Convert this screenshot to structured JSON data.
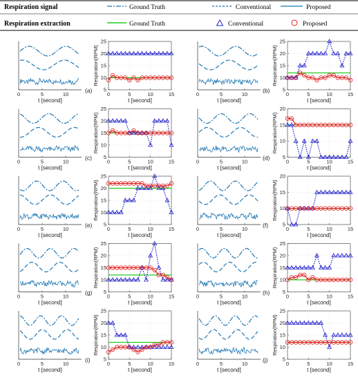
{
  "legend": {
    "signal_title": "Respiration signal",
    "signal_items": [
      "Ground Truth",
      "Conventional",
      "Proposed"
    ],
    "extraction_title": "Respiration extraction",
    "extraction_items": [
      "Ground Truth",
      "Conventional",
      "Proposed"
    ]
  },
  "colors": {
    "signal": "#1f77b4",
    "ground_truth_line": "#22cc22",
    "conventional_marker": "#2222cc",
    "proposed_marker": "#e02020",
    "axis": "#333333"
  },
  "axes": {
    "signal_xlabel": "t [second]",
    "signal_xticks": [
      "0",
      "5",
      "10"
    ],
    "rate_xlabel": "t [second]",
    "rate_ylabel": "Respiration(RPM)",
    "rate_xticks": [
      "0",
      "5",
      "10",
      "15"
    ],
    "rate_yticks": [
      "5",
      "10",
      "15",
      "20",
      "25"
    ]
  },
  "chart_data": [
    {
      "label": "(a)",
      "type": "line",
      "xlim": [
        0,
        15
      ],
      "ylim": [
        5,
        25
      ],
      "x": [
        0,
        1,
        2,
        3,
        4,
        5,
        6,
        7,
        8,
        9,
        10,
        11,
        12,
        13,
        14,
        15
      ],
      "series": [
        {
          "name": "Ground Truth",
          "values": [
            10,
            10,
            10,
            10,
            10,
            10,
            10,
            10,
            10,
            10,
            10,
            10,
            10,
            10,
            10,
            10
          ]
        },
        {
          "name": "Conventional",
          "values": [
            20,
            20,
            20,
            20,
            20,
            20,
            20,
            20,
            20,
            20,
            20,
            20,
            20,
            20,
            20,
            20
          ]
        },
        {
          "name": "Proposed",
          "values": [
            9,
            11,
            10,
            10,
            10,
            9,
            10,
            9,
            10,
            10,
            10,
            10,
            10,
            10,
            10,
            10
          ]
        }
      ]
    },
    {
      "label": "(b)",
      "type": "line",
      "xlim": [
        0,
        15
      ],
      "ylim": [
        5,
        25
      ],
      "x": [
        0,
        1,
        2,
        3,
        4,
        5,
        6,
        7,
        8,
        9,
        10,
        11,
        12,
        13,
        14,
        15
      ],
      "series": [
        {
          "name": "Ground Truth",
          "values": [
            12,
            12,
            12,
            12,
            12,
            12,
            12,
            12,
            12,
            12,
            12,
            12,
            12,
            12,
            12,
            12
          ]
        },
        {
          "name": "Conventional",
          "values": [
            10,
            10,
            10,
            15,
            15,
            20,
            20,
            20,
            20,
            20,
            25,
            20,
            20,
            15,
            20,
            20
          ]
        },
        {
          "name": "Proposed",
          "values": [
            10,
            10,
            10,
            12,
            11,
            10,
            10,
            9,
            10,
            10,
            11,
            11,
            10,
            10,
            10,
            9
          ]
        }
      ]
    },
    {
      "label": "(c)",
      "type": "line",
      "xlim": [
        0,
        15
      ],
      "ylim": [
        5,
        25
      ],
      "x": [
        0,
        1,
        2,
        3,
        4,
        5,
        6,
        7,
        8,
        9,
        10,
        11,
        12,
        13,
        14,
        15
      ],
      "series": [
        {
          "name": "Ground Truth",
          "values": [
            15,
            15,
            15,
            15,
            15,
            15,
            15,
            15,
            15,
            15,
            15,
            15,
            15,
            15,
            15,
            15
          ]
        },
        {
          "name": "Conventional",
          "values": [
            20,
            20,
            20,
            20,
            20,
            15,
            15,
            15,
            15,
            15,
            10,
            20,
            20,
            20,
            20,
            10
          ]
        },
        {
          "name": "Proposed",
          "values": [
            15,
            16,
            15,
            15,
            15,
            15,
            16,
            15,
            15,
            15,
            15,
            15,
            15,
            15,
            15,
            15
          ]
        }
      ]
    },
    {
      "label": "(d)",
      "type": "line",
      "xlim": [
        0,
        15
      ],
      "ylim": [
        5,
        20
      ],
      "x": [
        0,
        1,
        2,
        3,
        4,
        5,
        6,
        7,
        8,
        9,
        10,
        11,
        12,
        13,
        14,
        15
      ],
      "series": [
        {
          "name": "Ground Truth",
          "values": [
            15,
            15,
            15,
            15,
            15,
            15,
            15,
            15,
            15,
            15,
            15,
            15,
            15,
            15,
            15,
            15
          ]
        },
        {
          "name": "Conventional",
          "values": [
            15,
            15,
            10,
            5,
            10,
            5,
            10,
            10,
            5,
            5,
            5,
            5,
            5,
            5,
            5,
            10
          ]
        },
        {
          "name": "Proposed",
          "values": [
            17,
            17,
            15,
            15,
            15,
            15,
            15,
            15,
            15,
            15,
            15,
            15,
            15,
            15,
            15,
            15
          ]
        }
      ]
    },
    {
      "label": "(e)",
      "type": "line",
      "xlim": [
        0,
        15
      ],
      "ylim": [
        5,
        25
      ],
      "x": [
        0,
        1,
        2,
        3,
        4,
        5,
        6,
        7,
        8,
        9,
        10,
        11,
        12,
        13,
        14,
        15
      ],
      "series": [
        {
          "name": "Ground Truth",
          "values": [
            20,
            20,
            20,
            20,
            20,
            20,
            20,
            20,
            20,
            20,
            20,
            20,
            20,
            20,
            20,
            20
          ]
        },
        {
          "name": "Conventional",
          "values": [
            10,
            10,
            10,
            10,
            15,
            15,
            15,
            20,
            20,
            20,
            20,
            25,
            20,
            20,
            15,
            10
          ]
        },
        {
          "name": "Proposed",
          "values": [
            22,
            22,
            22,
            22,
            22,
            22,
            22,
            22,
            22,
            21,
            21,
            21,
            21,
            21,
            21,
            22
          ]
        }
      ]
    },
    {
      "label": "(f)",
      "type": "line",
      "xlim": [
        0,
        15
      ],
      "ylim": [
        5,
        20
      ],
      "x": [
        0,
        1,
        2,
        3,
        4,
        5,
        6,
        7,
        8,
        9,
        10,
        11,
        12,
        13,
        14,
        15
      ],
      "series": [
        {
          "name": "Ground Truth",
          "values": [
            10,
            10,
            10,
            10,
            10,
            10,
            10,
            10,
            10,
            10,
            10,
            10,
            10,
            10,
            10,
            10
          ]
        },
        {
          "name": "Conventional",
          "values": [
            10,
            5,
            5,
            10,
            10,
            10,
            10,
            15,
            15,
            15,
            15,
            15,
            15,
            15,
            15,
            15
          ]
        },
        {
          "name": "Proposed",
          "values": [
            10,
            10,
            10,
            10,
            10,
            10,
            10,
            10,
            10,
            10,
            10,
            10,
            10,
            10,
            10,
            10
          ]
        }
      ]
    },
    {
      "label": "(g)",
      "type": "line",
      "xlim": [
        0,
        15
      ],
      "ylim": [
        5,
        25
      ],
      "x": [
        0,
        1,
        2,
        3,
        4,
        5,
        6,
        7,
        8,
        9,
        10,
        11,
        12,
        13,
        14,
        15
      ],
      "series": [
        {
          "name": "Ground Truth",
          "values": [
            12,
            12,
            12,
            12,
            12,
            12,
            12,
            12,
            12,
            12,
            12,
            12,
            12,
            12,
            12,
            12
          ]
        },
        {
          "name": "Conventional",
          "values": [
            10,
            10,
            10,
            10,
            10,
            10,
            10,
            10,
            15,
            10,
            20,
            25,
            15,
            10,
            10,
            10
          ]
        },
        {
          "name": "Proposed",
          "values": [
            15,
            15,
            15,
            15,
            15,
            15,
            15,
            15,
            15,
            15,
            15,
            14,
            12,
            12,
            11,
            10
          ]
        }
      ]
    },
    {
      "label": "(h)",
      "type": "line",
      "xlim": [
        0,
        15
      ],
      "ylim": [
        5,
        25
      ],
      "x": [
        0,
        1,
        2,
        3,
        4,
        5,
        6,
        7,
        8,
        9,
        10,
        11,
        12,
        13,
        14,
        15
      ],
      "series": [
        {
          "name": "Ground Truth",
          "values": [
            10,
            10,
            10,
            10,
            10,
            10,
            10,
            10,
            10,
            10,
            10,
            10,
            10,
            10,
            10,
            10
          ]
        },
        {
          "name": "Conventional",
          "values": [
            15,
            15,
            15,
            15,
            15,
            15,
            15,
            20,
            15,
            15,
            15,
            20,
            20,
            20,
            20,
            20
          ]
        },
        {
          "name": "Proposed",
          "values": [
            10,
            11,
            11,
            12,
            12,
            10,
            11,
            10,
            10,
            10,
            10,
            10,
            10,
            10,
            10,
            10
          ]
        }
      ]
    },
    {
      "label": "(i)",
      "type": "line",
      "xlim": [
        0,
        15
      ],
      "ylim": [
        5,
        25
      ],
      "x": [
        0,
        1,
        2,
        3,
        4,
        5,
        6,
        7,
        8,
        9,
        10,
        11,
        12,
        13,
        14,
        15
      ],
      "series": [
        {
          "name": "Ground Truth",
          "values": [
            12,
            12,
            12,
            12,
            12,
            12,
            12,
            12,
            12,
            12,
            12,
            12,
            12,
            12,
            12,
            12
          ]
        },
        {
          "name": "Conventional",
          "values": [
            20,
            20,
            15,
            15,
            15,
            10,
            10,
            10,
            10,
            10,
            10,
            10,
            10,
            10,
            10,
            10
          ]
        },
        {
          "name": "Proposed",
          "values": [
            8,
            9,
            10,
            10,
            10,
            10,
            9,
            8,
            9,
            10,
            10,
            11,
            11,
            12,
            12,
            12
          ]
        }
      ]
    },
    {
      "label": "(j)",
      "type": "line",
      "xlim": [
        0,
        15
      ],
      "ylim": [
        5,
        25
      ],
      "x": [
        0,
        1,
        2,
        3,
        4,
        5,
        6,
        7,
        8,
        9,
        10,
        11,
        12,
        13,
        14,
        15
      ],
      "series": [
        {
          "name": "Ground Truth",
          "values": [
            12,
            12,
            12,
            12,
            12,
            12,
            12,
            12,
            12,
            12,
            12,
            12,
            12,
            12,
            12,
            12
          ]
        },
        {
          "name": "Conventional",
          "values": [
            20,
            20,
            20,
            20,
            20,
            20,
            20,
            20,
            20,
            15,
            10,
            15,
            15,
            15,
            15,
            15
          ]
        },
        {
          "name": "Proposed",
          "values": [
            12,
            12,
            12,
            12,
            12,
            12,
            12,
            12,
            12,
            12,
            12,
            12,
            12,
            12,
            12,
            12
          ]
        }
      ]
    }
  ]
}
